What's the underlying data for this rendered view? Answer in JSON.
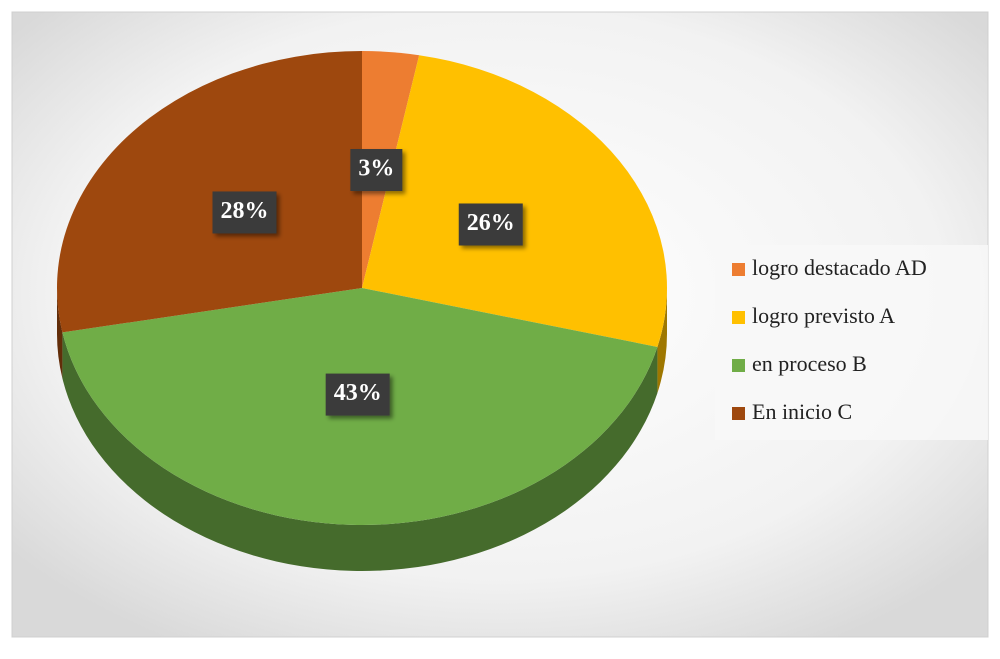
{
  "chart_data": {
    "type": "pie",
    "categories": [
      "logro destacado AD",
      "logro previsto A",
      "en proceso B",
      "En inicio C"
    ],
    "values": [
      3,
      26,
      43,
      28
    ],
    "value_labels": [
      "3%",
      "26%",
      "43%",
      "28%"
    ],
    "colors": [
      "#ED7D31",
      "#FFC000",
      "#70AD47",
      "#9E480E"
    ],
    "legend": "right"
  }
}
